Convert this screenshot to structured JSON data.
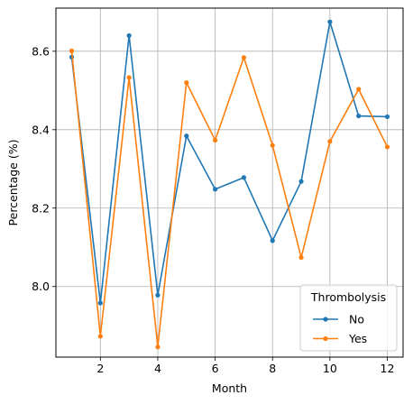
{
  "chart_data": {
    "type": "line",
    "title": "",
    "xlabel": "Month",
    "ylabel": "Percentage (%)",
    "x": [
      1,
      2,
      3,
      4,
      5,
      6,
      7,
      8,
      9,
      10,
      11,
      12
    ],
    "xticks": [
      2,
      4,
      6,
      8,
      10,
      12
    ],
    "yticks": [
      8.0,
      8.2,
      8.4,
      8.6
    ],
    "xtick_labels": [
      "2",
      "4",
      "6",
      "8",
      "10",
      "12"
    ],
    "ytick_labels": [
      "8.0",
      "8.2",
      "8.4",
      "8.6"
    ],
    "xlim": [
      0.45,
      12.55
    ],
    "ylim": [
      7.82,
      8.71
    ],
    "grid": true,
    "legend": {
      "title": "Thrombolysis",
      "placement": "lower right"
    },
    "series": [
      {
        "name": "No",
        "color": "#1f77b4",
        "values": [
          8.585,
          7.958,
          8.64,
          7.978,
          8.384,
          8.248,
          8.278,
          8.117,
          8.268,
          8.675,
          8.435,
          8.433
        ]
      },
      {
        "name": "Yes",
        "color": "#ff7f0e",
        "values": [
          8.601,
          7.873,
          8.533,
          7.846,
          8.52,
          8.373,
          8.584,
          8.36,
          8.074,
          8.37,
          8.503,
          8.356
        ]
      }
    ]
  }
}
